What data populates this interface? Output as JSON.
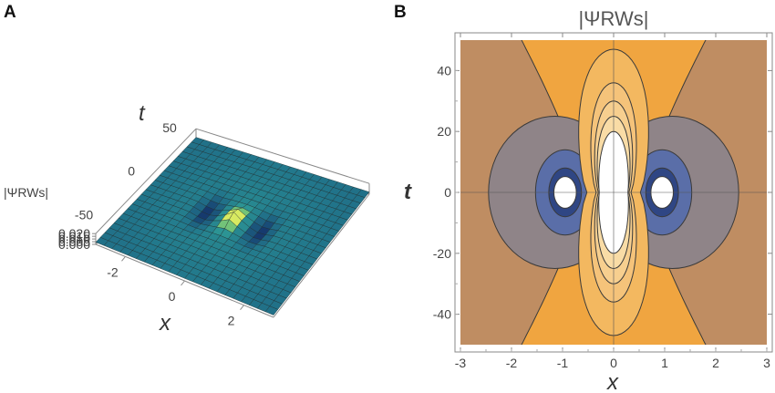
{
  "panels": {
    "a_label": "A",
    "b_label": "B"
  },
  "colors": {
    "surface_low": "#2e9a99",
    "surface_high": "#f6f45c",
    "contour_bg": "#f0a540",
    "contour_lines": "#3a3a3a"
  },
  "chart_data": [
    {
      "type": "surface3d",
      "panel": "A",
      "title": "",
      "xlabel": "x",
      "ylabel": "t",
      "zlabel": "|ΨRWs|",
      "x_range": [
        -3,
        3
      ],
      "t_range": [
        -60,
        60
      ],
      "z_range": [
        0,
        0.02
      ],
      "x_ticks": [
        "-2",
        "0",
        "2"
      ],
      "t_ticks": [
        "-50",
        "0",
        "50"
      ],
      "z_ticks": [
        "0.000",
        "0.005",
        "0.010",
        "0.015",
        "0.020"
      ],
      "features": [
        {
          "kind": "peak",
          "x": 0,
          "t": 0,
          "z": 0.021
        },
        {
          "kind": "dip",
          "x": -0.9,
          "t": 0,
          "z": 0.0
        },
        {
          "kind": "dip",
          "x": 0.9,
          "t": 0,
          "z": 0.0
        }
      ],
      "background_level": 0.006
    },
    {
      "type": "contour",
      "panel": "B",
      "title": "|ΨRWs|",
      "xlabel": "x",
      "ylabel": "t",
      "xlim": [
        -3,
        3
      ],
      "ylim": [
        -50,
        50
      ],
      "x_ticks": [
        "-3",
        "-2",
        "-1",
        "0",
        "1",
        "2",
        "3"
      ],
      "y_ticks": [
        "-40",
        "-20",
        "0",
        "20",
        "40"
      ],
      "regions": [
        {
          "kind": "high",
          "center_x": 0,
          "center_t": 0,
          "x_half_width": 0.28,
          "t_half_extent": 19
        },
        {
          "kind": "low",
          "center_x": -0.9,
          "center_t": 0
        },
        {
          "kind": "low",
          "center_x": 0.9,
          "center_t": 0
        }
      ]
    }
  ]
}
